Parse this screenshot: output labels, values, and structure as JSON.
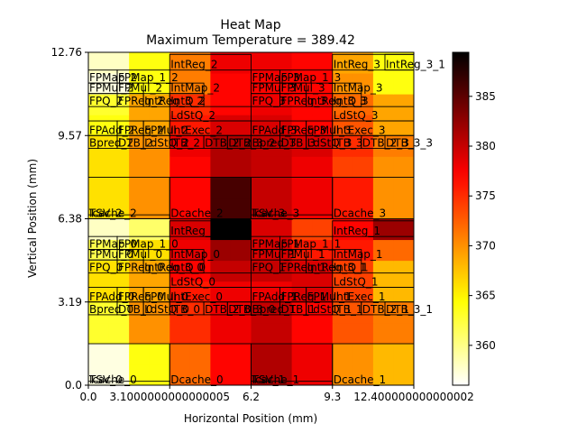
{
  "chart_data": {
    "type": "heatmap",
    "title": "Heat Map",
    "subtitle": "Maximum Temperature = 389.42",
    "xlabel": "Horizontal Position (mm)",
    "ylabel": "Vertical Position (mm)",
    "xlim": [
      0,
      12.4
    ],
    "ylim": [
      0,
      12.76
    ],
    "x_tick_values": [
      0,
      3.1,
      6.2,
      9.3,
      12.4
    ],
    "x_tick_labels": [
      "0.0",
      "3.1000000000000005",
      "6.2",
      "9.3",
      "12.400000000000002"
    ],
    "y_tick_values": [
      0,
      3.19,
      6.38,
      9.57,
      12.76
    ],
    "y_tick_labels": [
      "0.0",
      "3.19",
      "6.38",
      "9.57",
      "12.76"
    ],
    "colorbar": {
      "colormap": "hot_r",
      "vmin": 356,
      "vmax": 389.42,
      "tick_values": [
        360,
        365,
        370,
        375,
        380,
        385
      ],
      "tick_labels": [
        "360",
        "365",
        "370",
        "375",
        "380",
        "385"
      ]
    },
    "grid_rows": 16,
    "grid_cols": 16,
    "grid_values": [
      [
        357,
        357,
        364,
        364,
        372,
        372,
        377,
        377,
        381,
        381,
        378,
        378,
        370,
        370,
        368,
        368
      ],
      [
        357,
        357,
        364,
        364,
        372,
        372,
        377,
        377,
        381,
        381,
        378,
        378,
        370,
        370,
        368,
        368
      ],
      [
        363,
        363,
        370,
        370,
        375,
        375,
        378,
        378,
        380,
        380,
        377,
        377,
        373,
        373,
        371,
        371
      ],
      [
        363,
        363,
        370,
        370,
        375,
        375,
        378,
        378,
        380,
        380,
        377,
        377,
        373,
        373,
        371,
        371
      ],
      [
        366,
        366,
        369,
        369,
        376,
        376,
        378,
        378,
        378,
        378,
        379,
        379,
        374,
        374,
        368,
        368
      ],
      [
        366,
        366,
        369,
        369,
        377,
        377,
        380,
        380,
        380,
        380,
        379,
        379,
        374,
        374,
        368,
        368
      ],
      [
        362,
        362,
        366,
        366,
        378,
        378,
        382,
        382,
        379,
        379,
        376,
        376,
        376,
        376,
        372,
        372
      ],
      [
        358,
        358,
        361,
        361,
        379,
        379,
        389.42,
        389.42,
        379,
        379,
        374,
        374,
        377,
        377,
        382,
        382
      ],
      [
        366,
        366,
        370,
        370,
        377,
        377,
        386,
        386,
        380,
        380,
        378,
        378,
        376,
        376,
        370,
        370
      ],
      [
        366,
        366,
        370,
        370,
        377,
        377,
        386,
        386,
        380,
        380,
        378,
        378,
        376,
        376,
        370,
        370
      ],
      [
        366,
        366,
        370,
        370,
        377,
        377,
        381,
        381,
        380,
        380,
        378,
        378,
        374,
        374,
        370,
        370
      ],
      [
        366,
        366,
        370,
        370,
        378,
        378,
        381,
        381,
        380,
        380,
        379,
        379,
        375,
        375,
        371,
        371
      ],
      [
        364,
        364,
        369,
        369,
        376,
        376,
        379,
        379,
        379,
        379,
        377,
        377,
        373,
        373,
        369,
        369
      ],
      [
        363,
        363,
        369,
        369,
        375,
        375,
        377,
        377,
        378,
        378,
        377,
        377,
        372,
        372,
        369,
        369
      ],
      [
        357,
        357,
        364,
        364,
        371,
        371,
        377,
        377,
        377,
        377,
        377,
        377,
        370,
        370,
        364,
        364
      ],
      [
        358,
        358,
        364,
        364,
        371,
        371,
        378,
        378,
        378,
        378,
        377,
        377,
        369,
        369,
        364,
        364
      ]
    ],
    "blocks": [
      {
        "label": "Icache_0",
        "x0": 0,
        "x1": 3.1,
        "y0": 0,
        "y1": 1.59
      },
      {
        "label": "TSV_0",
        "x0": 0,
        "x1": 3.1,
        "y0": 0,
        "y1": 0.15
      },
      {
        "label": "Dcache_0",
        "x0": 3.1,
        "x1": 6.2,
        "y0": 0,
        "y1": 1.59
      },
      {
        "label": "Icache_1",
        "x0": 6.2,
        "x1": 9.3,
        "y0": 0,
        "y1": 1.59
      },
      {
        "label": "TSV_1",
        "x0": 6.2,
        "x1": 9.3,
        "y0": 0,
        "y1": 0.15
      },
      {
        "label": "Dcache_1",
        "x0": 9.3,
        "x1": 12.4,
        "y0": 0,
        "y1": 1.59
      },
      {
        "label": "Bpred_0",
        "x0": 0,
        "x1": 1.1,
        "y0": 2.7,
        "y1": 3.19
      },
      {
        "label": "DTB_0",
        "x0": 1.1,
        "x1": 2.1,
        "y0": 2.7,
        "y1": 3.19
      },
      {
        "label": "LdStQ_0",
        "x0": 2.1,
        "x1": 3.1,
        "y0": 2.7,
        "y1": 3.19
      },
      {
        "label": "Bpred_1",
        "x0": 6.2,
        "x1": 7.3,
        "y0": 2.7,
        "y1": 3.19
      },
      {
        "label": "DTB_1",
        "x0": 7.3,
        "x1": 8.3,
        "y0": 2.7,
        "y1": 3.19
      },
      {
        "label": "LdStQ_1",
        "x0": 8.3,
        "x1": 9.3,
        "y0": 2.7,
        "y1": 3.19
      },
      {
        "label": "FPAdd_0",
        "x0": 0,
        "x1": 1.1,
        "y0": 3.19,
        "y1": 3.75
      },
      {
        "label": "FPReg_0",
        "x0": 1.1,
        "x1": 2.1,
        "y0": 3.19,
        "y1": 3.75
      },
      {
        "label": "FPMul_0",
        "x0": 2.1,
        "x1": 3.1,
        "y0": 3.19,
        "y1": 3.75
      },
      {
        "label": "FPAdd_1",
        "x0": 6.2,
        "x1": 7.3,
        "y0": 3.19,
        "y1": 3.75
      },
      {
        "label": "FPReg_1",
        "x0": 7.3,
        "x1": 8.3,
        "y0": 3.19,
        "y1": 3.75
      },
      {
        "label": "FPMul_1",
        "x0": 8.3,
        "x1": 9.3,
        "y0": 3.19,
        "y1": 3.75
      },
      {
        "label": "ITB_0",
        "x0": 3.1,
        "x1": 4.4,
        "y0": 2.7,
        "y1": 3.19
      },
      {
        "label": "DTB_2_0",
        "x0": 4.4,
        "x1": 5.3,
        "y0": 2.7,
        "y1": 3.19
      },
      {
        "label": "DTB_3_0",
        "x0": 5.3,
        "x1": 6.2,
        "y0": 2.7,
        "y1": 3.19
      },
      {
        "label": "ITB_1",
        "x0": 9.3,
        "x1": 10.4,
        "y0": 2.7,
        "y1": 3.19
      },
      {
        "label": "DTB_2_1",
        "x0": 10.4,
        "x1": 11.3,
        "y0": 2.7,
        "y1": 3.19
      },
      {
        "label": "DTB_3_1",
        "x0": 11.3,
        "x1": 12.4,
        "y0": 2.7,
        "y1": 3.19
      },
      {
        "label": "IntExec_0",
        "x0": 3.1,
        "x1": 6.2,
        "y0": 3.19,
        "y1": 3.75
      },
      {
        "label": "IntExec_1",
        "x0": 9.3,
        "x1": 12.4,
        "y0": 3.19,
        "y1": 3.75
      },
      {
        "label": "LdStQ_0",
        "x0": 3.1,
        "x1": 6.2,
        "y0": 3.75,
        "y1": 4.3
      },
      {
        "label": "LdStQ_1",
        "x0": 9.3,
        "x1": 12.4,
        "y0": 3.75,
        "y1": 4.3
      },
      {
        "label": "FPQ_0",
        "x0": 0,
        "x1": 1.1,
        "y0": 4.3,
        "y1": 4.8
      },
      {
        "label": "FPReg_0",
        "x0": 1.1,
        "x1": 2.1,
        "y0": 4.3,
        "y1": 4.8
      },
      {
        "label": "IntReg_3_0",
        "x0": 2.1,
        "x1": 3.1,
        "y0": 4.3,
        "y1": 4.8
      },
      {
        "label": "FPQ_1",
        "x0": 6.2,
        "x1": 7.3,
        "y0": 4.3,
        "y1": 4.8
      },
      {
        "label": "FPReg_1",
        "x0": 7.3,
        "x1": 8.3,
        "y0": 4.3,
        "y1": 4.8
      },
      {
        "label": "IntReg_3_1",
        "x0": 8.3,
        "x1": 9.3,
        "y0": 4.3,
        "y1": 4.8
      },
      {
        "label": "IntQ_0",
        "x0": 3.1,
        "x1": 4.4,
        "y0": 4.3,
        "y1": 4.8
      },
      {
        "label": "IntQ_1",
        "x0": 9.3,
        "x1": 10.4,
        "y0": 4.3,
        "y1": 4.8
      },
      {
        "label": "FPMul_0",
        "x0": 0,
        "x1": 1.1,
        "y0": 4.8,
        "y1": 5.2
      },
      {
        "label": "FPMul_0",
        "x0": 1.1,
        "x1": 2.1,
        "y0": 4.8,
        "y1": 5.2
      },
      {
        "label": "IntMap_0",
        "x0": 3.1,
        "x1": 4.4,
        "y0": 4.8,
        "y1": 5.2
      },
      {
        "label": "FPMul_1",
        "x0": 6.2,
        "x1": 7.3,
        "y0": 4.8,
        "y1": 5.2
      },
      {
        "label": "FPMul_1",
        "x0": 7.3,
        "x1": 8.3,
        "y0": 4.8,
        "y1": 5.2
      },
      {
        "label": "IntMap_1",
        "x0": 9.3,
        "x1": 10.4,
        "y0": 4.8,
        "y1": 5.2
      },
      {
        "label": "FPMap_0",
        "x0": 0,
        "x1": 1.1,
        "y0": 5.2,
        "y1": 5.7
      },
      {
        "label": "FPMap_1_0",
        "x0": 1.1,
        "x1": 3.1,
        "y0": 5.2,
        "y1": 5.7
      },
      {
        "label": "FPMap_1_1",
        "x0": 7.3,
        "x1": 9.3,
        "y0": 5.2,
        "y1": 5.7
      },
      {
        "label": "IntReg_0",
        "x0": 3.1,
        "x1": 6.2,
        "y0": 5.7,
        "y1": 6.3
      },
      {
        "label": "IntReg_1",
        "x0": 9.3,
        "x1": 12.4,
        "y0": 5.7,
        "y1": 6.3
      },
      {
        "label": "FPMap_1",
        "x0": 6.2,
        "x1": 7.3,
        "y0": 5.2,
        "y1": 5.7
      },
      {
        "label": "Icache_2",
        "x0": 0,
        "x1": 3.1,
        "y0": 6.38,
        "y1": 7.97
      },
      {
        "label": "TSV_2",
        "x0": 0,
        "x1": 3.1,
        "y0": 6.38,
        "y1": 6.53
      },
      {
        "label": "Dcache_2",
        "x0": 3.1,
        "x1": 6.2,
        "y0": 6.38,
        "y1": 7.97
      },
      {
        "label": "Icache_3",
        "x0": 6.2,
        "x1": 9.3,
        "y0": 6.38,
        "y1": 7.97
      },
      {
        "label": "TSV_3",
        "x0": 6.2,
        "x1": 9.3,
        "y0": 6.38,
        "y1": 6.53
      },
      {
        "label": "Dcache_3",
        "x0": 9.3,
        "x1": 12.4,
        "y0": 6.38,
        "y1": 7.97
      },
      {
        "label": "Bpred_2",
        "x0": 0,
        "x1": 1.1,
        "y0": 9.08,
        "y1": 9.57
      },
      {
        "label": "DTB_2",
        "x0": 1.1,
        "x1": 2.1,
        "y0": 9.08,
        "y1": 9.57
      },
      {
        "label": "LdStQ_2",
        "x0": 2.1,
        "x1": 3.1,
        "y0": 9.08,
        "y1": 9.57
      },
      {
        "label": "Bpred_3",
        "x0": 6.2,
        "x1": 7.3,
        "y0": 9.08,
        "y1": 9.57
      },
      {
        "label": "DTB_3",
        "x0": 7.3,
        "x1": 8.3,
        "y0": 9.08,
        "y1": 9.57
      },
      {
        "label": "LdStQ_3",
        "x0": 8.3,
        "x1": 9.3,
        "y0": 9.08,
        "y1": 9.57
      },
      {
        "label": "FPAdd_2",
        "x0": 0,
        "x1": 1.1,
        "y0": 9.57,
        "y1": 10.13
      },
      {
        "label": "FPReg_2",
        "x0": 1.1,
        "x1": 2.1,
        "y0": 9.57,
        "y1": 10.13
      },
      {
        "label": "FPMul_2",
        "x0": 2.1,
        "x1": 3.1,
        "y0": 9.57,
        "y1": 10.13
      },
      {
        "label": "FPAdd_3",
        "x0": 6.2,
        "x1": 7.3,
        "y0": 9.57,
        "y1": 10.13
      },
      {
        "label": "FPReg_3",
        "x0": 7.3,
        "x1": 8.3,
        "y0": 9.57,
        "y1": 10.13
      },
      {
        "label": "FPMul_3",
        "x0": 8.3,
        "x1": 9.3,
        "y0": 9.57,
        "y1": 10.13
      },
      {
        "label": "ITB_2",
        "x0": 3.1,
        "x1": 4.4,
        "y0": 9.08,
        "y1": 9.57
      },
      {
        "label": "DTB_2_2",
        "x0": 4.4,
        "x1": 5.3,
        "y0": 9.08,
        "y1": 9.57
      },
      {
        "label": "DTB_3_2",
        "x0": 5.3,
        "x1": 6.2,
        "y0": 9.08,
        "y1": 9.57
      },
      {
        "label": "ITB_3",
        "x0": 9.3,
        "x1": 10.4,
        "y0": 9.08,
        "y1": 9.57
      },
      {
        "label": "DTB_2_3",
        "x0": 10.4,
        "x1": 11.3,
        "y0": 9.08,
        "y1": 9.57
      },
      {
        "label": "DTB_3_3",
        "x0": 11.3,
        "x1": 12.4,
        "y0": 9.08,
        "y1": 9.57
      },
      {
        "label": "IntExec_2",
        "x0": 3.1,
        "x1": 6.2,
        "y0": 9.57,
        "y1": 10.13
      },
      {
        "label": "IntExec_3",
        "x0": 9.3,
        "x1": 12.4,
        "y0": 9.57,
        "y1": 10.13
      },
      {
        "label": "LdStQ_2",
        "x0": 3.1,
        "x1": 6.2,
        "y0": 10.13,
        "y1": 10.68
      },
      {
        "label": "LdStQ_3",
        "x0": 9.3,
        "x1": 12.4,
        "y0": 10.13,
        "y1": 10.68
      },
      {
        "label": "FPQ_2",
        "x0": 0,
        "x1": 1.1,
        "y0": 10.68,
        "y1": 11.18
      },
      {
        "label": "FPReg_2",
        "x0": 1.1,
        "x1": 2.1,
        "y0": 10.68,
        "y1": 11.18
      },
      {
        "label": "IntReg_3_2",
        "x0": 2.1,
        "x1": 3.1,
        "y0": 10.68,
        "y1": 11.18
      },
      {
        "label": "FPQ_3",
        "x0": 6.2,
        "x1": 7.3,
        "y0": 10.68,
        "y1": 11.18
      },
      {
        "label": "FPReg_3",
        "x0": 7.3,
        "x1": 8.3,
        "y0": 10.68,
        "y1": 11.18
      },
      {
        "label": "IntReg_3_3",
        "x0": 8.3,
        "x1": 9.3,
        "y0": 10.68,
        "y1": 11.18
      },
      {
        "label": "IntQ_2",
        "x0": 3.1,
        "x1": 4.4,
        "y0": 10.68,
        "y1": 11.18
      },
      {
        "label": "IntQ_3",
        "x0": 9.3,
        "x1": 10.4,
        "y0": 10.68,
        "y1": 11.18
      },
      {
        "label": "FPMul_2",
        "x0": 0,
        "x1": 1.1,
        "y0": 11.18,
        "y1": 11.58
      },
      {
        "label": "FPMul_2",
        "x0": 1.1,
        "x1": 2.1,
        "y0": 11.18,
        "y1": 11.58
      },
      {
        "label": "IntMap_2",
        "x0": 3.1,
        "x1": 4.4,
        "y0": 11.18,
        "y1": 11.58
      },
      {
        "label": "FPMul_3",
        "x0": 6.2,
        "x1": 7.3,
        "y0": 11.18,
        "y1": 11.58
      },
      {
        "label": "FPMul_3",
        "x0": 7.3,
        "x1": 8.3,
        "y0": 11.18,
        "y1": 11.58
      },
      {
        "label": "IntMap_3",
        "x0": 9.3,
        "x1": 10.4,
        "y0": 11.18,
        "y1": 11.58
      },
      {
        "label": "FPMap_2",
        "x0": 0,
        "x1": 1.1,
        "y0": 11.58,
        "y1": 12.08
      },
      {
        "label": "FPMap_1_2",
        "x0": 1.1,
        "x1": 3.1,
        "y0": 11.58,
        "y1": 12.08
      },
      {
        "label": "FPMap_3",
        "x0": 6.2,
        "x1": 7.3,
        "y0": 11.58,
        "y1": 12.08
      },
      {
        "label": "FPMap_1_3",
        "x0": 7.3,
        "x1": 9.3,
        "y0": 11.58,
        "y1": 12.08
      },
      {
        "label": "IntReg_2",
        "x0": 3.1,
        "x1": 6.2,
        "y0": 12.08,
        "y1": 12.68
      },
      {
        "label": "IntReg_3",
        "x0": 9.3,
        "x1": 12.4,
        "y0": 12.08,
        "y1": 12.68
      },
      {
        "label": "IntReg_3_1",
        "x0": 11.3,
        "x1": 12.4,
        "y0": 12.08,
        "y1": 12.68
      }
    ],
    "block_labels_shown": [
      "Icache_0",
      "TSV_0",
      "Dcache_0",
      "Icache_1",
      "TSV_1",
      "Dcache_1",
      "Bpred_0",
      "Bpred_1",
      "FPAdd_0",
      "FPAdd_1",
      "IntExec_0",
      "IntExec_1",
      "LdStQ_0",
      "LdStQ_1",
      "IntQ_0",
      "IntQ_1",
      "IntMap_0",
      "IntMap_1",
      "FPMul_0",
      "FPMul_1",
      "FPMap_0",
      "FPMap_1_0",
      "FPMap_1_1",
      "IntReg_0",
      "IntReg_1",
      "Icache_2",
      "TSV_2",
      "Dcache_2",
      "Icache_3",
      "TSV_3",
      "Dcache_3",
      "Bpred_2",
      "Bpred_3",
      "FPAdd_2",
      "FPAdd_3",
      "IntExec_2",
      "IntExec_3",
      "LdStQ_2",
      "LdStQ_3",
      "IntQ_2",
      "IntQ_3",
      "IntMap_2",
      "IntMap_3",
      "FPMul_2",
      "FPMul_3",
      "FPMap_2",
      "FPMap_1_2",
      "FPMap_1_3",
      "IntReg_2",
      "IntReg_3",
      "DTB_2_1",
      "DTB_2_3",
      "IntReg_3_1",
      "IntReg_3_3"
    ]
  }
}
